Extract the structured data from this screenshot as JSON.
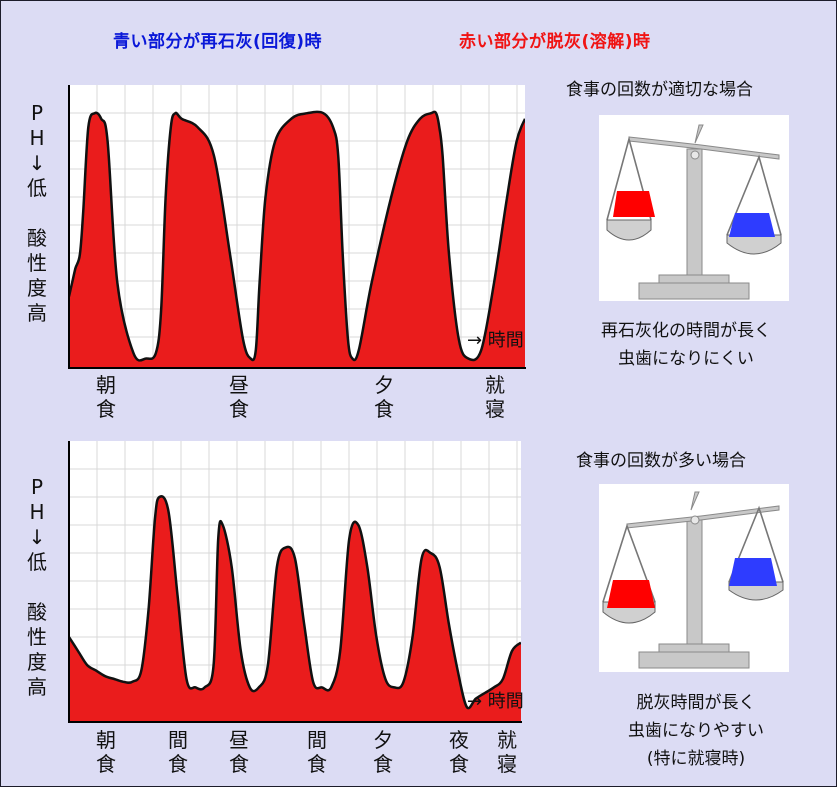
{
  "legend": {
    "blue_text": "青い部分が再石灰(回復)時",
    "red_text": "赤い部分が脱灰(溶解)時",
    "blue_color": "#0a18d8",
    "red_color": "#f01414"
  },
  "panels": [
    {
      "y_label": "P\nH\n↓\n低\n\n酸\n性\n度\n高",
      "time_label": "→ 時間",
      "side_title": "食事の回数が適切な場合",
      "caption": "再石灰化の時間が長く\n虫歯になりにくい",
      "tick_labels": [
        "朝\n食",
        "昼\n食",
        "夕\n食",
        "就\n寝"
      ],
      "chart_data": {
        "type": "line",
        "x": [
          0,
          5,
          10,
          17,
          22,
          30,
          40,
          50,
          60,
          75,
          100,
          120,
          135,
          143,
          150,
          158,
          165,
          175,
          200,
          225,
          250,
          270,
          282,
          290,
          296,
          305,
          320,
          345,
          370,
          395,
          410,
          418,
          425,
          433,
          440,
          450,
          470,
          500,
          525,
          545,
          562,
          570,
          575,
          580,
          590,
          605,
          620,
          640,
          660,
          680,
          695,
          708
        ],
        "y": [
          0.25,
          0.3,
          0.35,
          0.4,
          0.55,
          0.85,
          0.9,
          0.88,
          0.8,
          0.3,
          0.05,
          0.03,
          0.05,
          0.2,
          0.6,
          0.85,
          0.9,
          0.88,
          0.85,
          0.75,
          0.4,
          0.1,
          0.03,
          0.06,
          0.3,
          0.6,
          0.8,
          0.88,
          0.9,
          0.9,
          0.85,
          0.75,
          0.4,
          0.1,
          0.03,
          0.06,
          0.3,
          0.6,
          0.8,
          0.88,
          0.9,
          0.9,
          0.85,
          0.75,
          0.4,
          0.1,
          0.03,
          0.06,
          0.3,
          0.6,
          0.8,
          0.88
        ]
      }
    },
    {
      "y_label": "P\nH\n↓\n低\n\n酸\n性\n度\n高",
      "time_label": "→ 時間",
      "side_title": "食事の回数が多い場合",
      "caption": "脱灰時間が長く\n虫歯になりやすい\n(特に就寝時)",
      "tick_labels": [
        "朝\n食",
        "間\n食",
        "昼\n食",
        "間\n食",
        "夕\n食",
        "夜\n食",
        "就\n寝"
      ],
      "chart_data": {
        "type": "line",
        "x": [
          0,
          10,
          20,
          30,
          40,
          50,
          60,
          70,
          80,
          88,
          95,
          100,
          110,
          120,
          130,
          140,
          150,
          160,
          165,
          170,
          180,
          190,
          200,
          210,
          220,
          230,
          240,
          250,
          260,
          270,
          280,
          290,
          300,
          310,
          320,
          330,
          340,
          350,
          360,
          370,
          380,
          390,
          400,
          410,
          420,
          430,
          440,
          450,
          460,
          470,
          480,
          490,
          500
        ],
        "y": [
          0.3,
          0.25,
          0.2,
          0.18,
          0.16,
          0.15,
          0.14,
          0.14,
          0.18,
          0.4,
          0.72,
          0.8,
          0.75,
          0.45,
          0.15,
          0.12,
          0.12,
          0.2,
          0.65,
          0.7,
          0.55,
          0.25,
          0.12,
          0.12,
          0.2,
          0.55,
          0.62,
          0.58,
          0.35,
          0.14,
          0.12,
          0.12,
          0.25,
          0.65,
          0.7,
          0.55,
          0.3,
          0.15,
          0.12,
          0.14,
          0.3,
          0.58,
          0.6,
          0.55,
          0.35,
          0.18,
          0.05,
          0.08,
          0.1,
          0.12,
          0.15,
          0.25,
          0.28
        ]
      }
    }
  ]
}
